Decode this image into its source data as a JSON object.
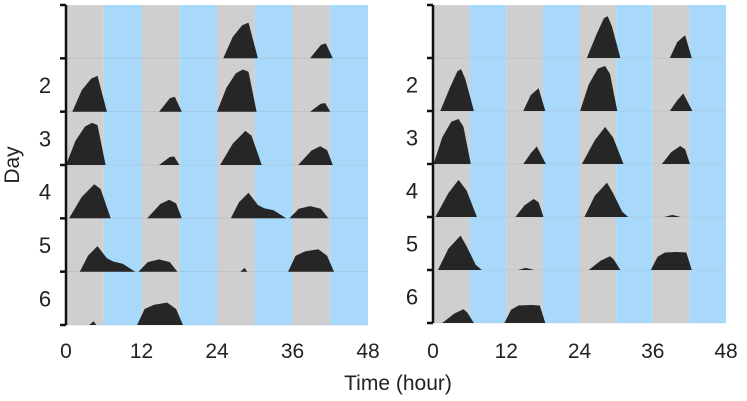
{
  "chart_data": {
    "type": "area",
    "subtype": "double-plotted actogram",
    "xlabel": "Time (hour)",
    "ylabel": "Day",
    "xlim": [
      0,
      48
    ],
    "xticks": [
      "0",
      "12",
      "24",
      "36",
      "48"
    ],
    "row_labels": [
      "",
      "2",
      "3",
      "4",
      "5",
      "6"
    ],
    "light_cycle": {
      "period_hours": 12,
      "grey_hours": 6,
      "blue_hours": 6
    },
    "colors": {
      "grey": "#cfcfcf",
      "blue": "#a9d9fa",
      "activity": "#262626",
      "axis": "#111111"
    },
    "panels": [
      {
        "days": [
          [],
          [
            [
              [
                1.0,
                0
              ],
              [
                2.5,
                0.4
              ],
              [
                4,
                0.62
              ],
              [
                5,
                0.67
              ],
              [
                6.5,
                0
              ]
            ],
            [
              [
                14.8,
                0
              ],
              [
                16.5,
                0.25
              ],
              [
                17.3,
                0.28
              ],
              [
                18.4,
                0
              ]
            ]
          ],
          [
            [
              [
                0,
                0
              ],
              [
                1.5,
                0.45
              ],
              [
                3,
                0.72
              ],
              [
                4.1,
                0.79
              ],
              [
                5,
                0.75
              ],
              [
                6.3,
                0
              ]
            ],
            [
              [
                14.8,
                0
              ],
              [
                16.5,
                0.15
              ],
              [
                17.2,
                0.16
              ],
              [
                18,
                0
              ]
            ]
          ],
          [
            [
              [
                0.5,
                0
              ],
              [
                2.5,
                0.4
              ],
              [
                4.5,
                0.64
              ],
              [
                5.5,
                0.55
              ],
              [
                7.1,
                0
              ]
            ],
            [
              [
                12.9,
                0
              ],
              [
                15,
                0.27
              ],
              [
                16.4,
                0.35
              ],
              [
                17.5,
                0.28
              ],
              [
                18.4,
                0
              ]
            ]
          ],
          [
            [
              [
                2.2,
                0
              ],
              [
                3.5,
                0.3
              ],
              [
                5,
                0.48
              ],
              [
                6.5,
                0.25
              ],
              [
                7.5,
                0.19
              ],
              [
                9,
                0.15
              ],
              [
                11,
                0
              ]
            ],
            [
              [
                11.5,
                0
              ],
              [
                13,
                0.18
              ],
              [
                14.8,
                0.23
              ],
              [
                16.5,
                0.18
              ],
              [
                17.7,
                0
              ]
            ]
          ],
          [
            [
              [
                3.7,
                0
              ],
              [
                4.4,
                0.07
              ],
              [
                4.8,
                0
              ]
            ],
            [
              [
                11.3,
                0
              ],
              [
                12.5,
                0.3
              ],
              [
                14,
                0.38
              ],
              [
                16.1,
                0.42
              ],
              [
                17.5,
                0.3
              ],
              [
                18.6,
                0
              ]
            ]
          ],
          []
        ]
      },
      {
        "days": [
          [],
          [
            [
              [
                1.2,
                0
              ],
              [
                2.8,
                0.45
              ],
              [
                4,
                0.75
              ],
              [
                4.6,
                0.79
              ],
              [
                5.3,
                0.6
              ],
              [
                6.7,
                0
              ]
            ],
            [
              [
                14.8,
                0
              ],
              [
                16,
                0.3
              ],
              [
                17.3,
                0.43
              ],
              [
                18.4,
                0
              ]
            ]
          ],
          [
            [
              [
                0.1,
                0
              ],
              [
                1.5,
                0.5
              ],
              [
                3,
                0.8
              ],
              [
                4.2,
                0.85
              ],
              [
                5,
                0.7
              ],
              [
                6.2,
                0
              ]
            ],
            [
              [
                14.8,
                0
              ],
              [
                16,
                0.2
              ],
              [
                17,
                0.33
              ],
              [
                18.5,
                0
              ]
            ]
          ],
          [
            [
              [
                0.4,
                0
              ],
              [
                2.5,
                0.45
              ],
              [
                4.2,
                0.7
              ],
              [
                5.5,
                0.5
              ],
              [
                7.2,
                0
              ]
            ],
            [
              [
                13.5,
                0
              ],
              [
                15,
                0.22
              ],
              [
                16.5,
                0.34
              ],
              [
                17.3,
                0.28
              ],
              [
                18.1,
                0
              ]
            ]
          ],
          [
            [
              [
                0.8,
                0
              ],
              [
                2.5,
                0.4
              ],
              [
                4.5,
                0.65
              ],
              [
                5.5,
                0.45
              ],
              [
                7,
                0.1
              ],
              [
                8,
                0
              ]
            ],
            [
              [
                13.9,
                0
              ],
              [
                15.2,
                0.04
              ],
              [
                16.6,
                0
              ]
            ]
          ],
          [
            [
              [
                1.5,
                0
              ],
              [
                3.5,
                0.18
              ],
              [
                5,
                0.26
              ],
              [
                5.6,
                0.2
              ],
              [
                6.7,
                0
              ]
            ],
            [
              [
                11.7,
                0
              ],
              [
                12.8,
                0.25
              ],
              [
                14,
                0.33
              ],
              [
                16,
                0.34
              ],
              [
                17.5,
                0.33
              ],
              [
                18.4,
                0
              ]
            ]
          ],
          []
        ]
      }
    ]
  }
}
